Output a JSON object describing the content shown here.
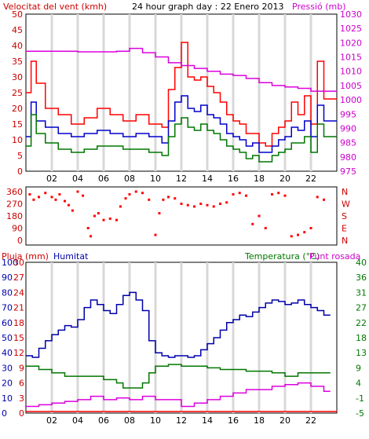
{
  "chart_data": [
    {
      "type": "line",
      "title": "24 hour graph day : 22 Enero 2013",
      "ylabel_left": "Velocitat del vent (kmh)",
      "ylabel_right": "Pressió (mb)",
      "x_ticks": [
        "02",
        "04",
        "06",
        "08",
        "10",
        "12",
        "14",
        "16",
        "18",
        "20",
        "22"
      ],
      "x_range": [
        0,
        24
      ],
      "y_left_range": [
        0,
        50
      ],
      "y_left_ticks": [
        0,
        5,
        10,
        15,
        20,
        25,
        30,
        35,
        40,
        45,
        50
      ],
      "y_right_range": [
        975,
        1030
      ],
      "y_right_ticks": [
        975,
        980,
        985,
        990,
        995,
        1000,
        1005,
        1010,
        1015,
        1020,
        1025,
        1030
      ],
      "colors": {
        "gust": "#ff0000",
        "speed": "#0000cc",
        "average": "#007700",
        "pressure": "#dd00dd",
        "grid": "#d8d8d8"
      },
      "pressure": {
        "x": [
          0,
          2,
          4,
          6,
          7,
          8,
          9,
          10,
          11,
          12,
          13,
          14,
          15,
          16,
          17,
          18,
          19,
          20,
          21,
          22,
          23
        ],
        "y": [
          1017,
          1017,
          1016.8,
          1016.8,
          1017,
          1018,
          1016.5,
          1015,
          1013,
          1012,
          1011,
          1010,
          1009,
          1008.5,
          1007.5,
          1006,
          1005,
          1004.5,
          1004,
          1003,
          1003
        ]
      },
      "gust_max": {
        "x": [
          0,
          0.4,
          0.8,
          1.5,
          2.5,
          3.5,
          4.5,
          5.5,
          6.5,
          7.5,
          8.5,
          9.5,
          10.5,
          11,
          11.5,
          12,
          12.5,
          13,
          13.5,
          14,
          14.5,
          15,
          15.5,
          16,
          16.5,
          17,
          17.5,
          18,
          18.5,
          19,
          19.5,
          20,
          20.5,
          21,
          21.5,
          22,
          22.5,
          23
        ],
        "y": [
          25,
          35,
          28,
          20,
          18,
          15,
          17,
          20,
          18,
          16,
          18,
          15,
          14,
          26,
          33,
          41,
          30,
          29,
          30,
          27,
          25,
          22,
          18,
          16,
          15,
          12,
          12,
          9,
          8,
          12,
          14,
          16,
          22,
          18,
          24,
          15,
          35,
          23
        ]
      },
      "speed": {
        "x": [
          0,
          0.4,
          0.8,
          1.5,
          2.5,
          3.5,
          4.5,
          5.5,
          6.5,
          7.5,
          8.5,
          9.5,
          10.5,
          11,
          11.5,
          12,
          12.5,
          13,
          13.5,
          14,
          14.5,
          15,
          15.5,
          16,
          16.5,
          17,
          17.5,
          18,
          18.5,
          19,
          19.5,
          20,
          20.5,
          21,
          21.5,
          22,
          22.5,
          23
        ],
        "y": [
          11,
          22,
          16,
          14,
          12,
          11,
          12,
          13,
          12,
          11,
          12,
          11,
          9,
          16,
          22,
          24,
          20,
          19,
          21,
          18,
          17,
          15,
          12,
          11,
          10,
          8,
          9,
          6,
          6,
          8,
          10,
          11,
          14,
          13,
          16,
          11,
          21,
          16
        ]
      },
      "average": {
        "x": [
          0,
          0.4,
          0.8,
          1.5,
          2.5,
          3.5,
          4.5,
          5.5,
          6.5,
          7.5,
          8.5,
          9.5,
          10.5,
          11,
          11.5,
          12,
          12.5,
          13,
          13.5,
          14,
          14.5,
          15,
          15.5,
          16,
          16.5,
          17,
          17.5,
          18,
          18.5,
          19,
          19.5,
          20,
          20.5,
          21,
          21.5,
          22,
          22.5,
          23
        ],
        "y": [
          8,
          18,
          12,
          9,
          7,
          6,
          7,
          8,
          8,
          7,
          7,
          6,
          5,
          11,
          15,
          17,
          14,
          13,
          15,
          13,
          12,
          10,
          8,
          7,
          6,
          4,
          5,
          3,
          3,
          5,
          6,
          7,
          9,
          9,
          11,
          6,
          15,
          11
        ]
      }
    },
    {
      "type": "scatter",
      "title": "",
      "y_left_ticks": [
        "360",
        "270",
        "180",
        "90",
        "0"
      ],
      "y_right_ticks": [
        "N",
        "W",
        "S",
        "E",
        "N"
      ],
      "y_range": [
        0,
        360
      ],
      "x_range": [
        0,
        24
      ],
      "colors": {
        "points": "#ff0000"
      },
      "direction": {
        "x": [
          0.3,
          0.6,
          1,
          1.5,
          2,
          2.3,
          2.6,
          3,
          3.3,
          3.6,
          4,
          4.4,
          4.8,
          5,
          5.3,
          5.6,
          6,
          6.5,
          7,
          7.3,
          7.7,
          8,
          8.5,
          9,
          9.5,
          10,
          10.3,
          10.6,
          11,
          11.5,
          12,
          12.5,
          13,
          13.5,
          14,
          14.5,
          15,
          15.5,
          16,
          16.5,
          17,
          17.5,
          18,
          18.5,
          19,
          19.5,
          20,
          20.5,
          21,
          21.5,
          22,
          22.5,
          23
        ],
        "y": [
          340,
          300,
          320,
          350,
          320,
          300,
          340,
          290,
          260,
          220,
          360,
          330,
          90,
          30,
          180,
          200,
          150,
          160,
          150,
          250,
          310,
          340,
          360,
          350,
          300,
          40,
          200,
          300,
          320,
          310,
          270,
          260,
          250,
          270,
          260,
          250,
          270,
          280,
          340,
          350,
          330,
          120,
          180,
          90,
          340,
          350,
          330,
          30,
          40,
          60,
          90,
          320,
          300
        ]
      }
    },
    {
      "type": "line",
      "title": "",
      "ylabel_left_1": "Pluja (mm)",
      "ylabel_left_2": "Humitat",
      "ylabel_right_1": "Temperatura (°C)",
      "ylabel_right_2": "Punt rosada",
      "x_ticks": [
        "02",
        "04",
        "06",
        "08",
        "10",
        "12",
        "14",
        "16",
        "18",
        "20",
        "22"
      ],
      "x_range": [
        0,
        24
      ],
      "rain_ticks": [
        0,
        3,
        6,
        9,
        12,
        15,
        18,
        21,
        24,
        27,
        30
      ],
      "humidity_ticks": [
        0,
        10,
        20,
        30,
        40,
        50,
        60,
        70,
        80,
        90,
        100
      ],
      "temp_ticks": [
        -5,
        -1,
        4,
        9,
        13,
        18,
        22,
        27,
        31,
        36,
        40
      ],
      "temp_range": [
        -5,
        40
      ],
      "humidity_range": [
        0,
        100
      ],
      "colors": {
        "humidity": "#0000aa",
        "temperature": "#007700",
        "dewpoint": "#dd00dd",
        "rain": "#ff0000"
      },
      "humidity": {
        "x": [
          0,
          0.5,
          1,
          1.5,
          2,
          2.5,
          3,
          3.5,
          4,
          4.5,
          5,
          5.5,
          6,
          6.5,
          7,
          7.5,
          8,
          8.5,
          9,
          9.5,
          10,
          10.5,
          11,
          11.5,
          12,
          12.5,
          13,
          13.5,
          14,
          14.5,
          15,
          15.5,
          16,
          16.5,
          17,
          17.5,
          18,
          18.5,
          19,
          19.5,
          20,
          20.5,
          21,
          21.5,
          22,
          22.5,
          23
        ],
        "y": [
          38,
          37,
          43,
          48,
          52,
          55,
          58,
          57,
          62,
          70,
          75,
          72,
          68,
          66,
          72,
          78,
          80,
          75,
          68,
          48,
          40,
          38,
          37,
          38,
          38,
          37,
          38,
          42,
          46,
          50,
          55,
          60,
          62,
          65,
          64,
          67,
          70,
          73,
          75,
          74,
          72,
          73,
          75,
          72,
          70,
          68,
          65
        ]
      },
      "temperature": {
        "x": [
          0,
          0.5,
          1,
          2,
          3,
          4,
          5,
          6,
          7,
          7.5,
          8,
          8.5,
          9,
          9.5,
          10,
          11,
          12,
          13,
          14,
          15,
          16,
          17,
          18,
          19,
          20,
          21,
          22,
          23
        ],
        "y": [
          9,
          9,
          8,
          7,
          6,
          6,
          6,
          5,
          4,
          2.5,
          2.5,
          2.5,
          4,
          7,
          9,
          9.5,
          9,
          9,
          8.5,
          8,
          8,
          7.5,
          7.5,
          7,
          6,
          7,
          7,
          7
        ]
      },
      "dewpoint": {
        "x": [
          0,
          1,
          2,
          3,
          4,
          5,
          6,
          7,
          8,
          9,
          10,
          11,
          12,
          13,
          14,
          15,
          16,
          17,
          18,
          19,
          20,
          21,
          22,
          23
        ],
        "y": [
          -3,
          -2.5,
          -2,
          -1.5,
          -1,
          0,
          -1,
          -0.5,
          -1,
          0,
          -1,
          -1,
          -3,
          -2,
          -1,
          0,
          1,
          2,
          2,
          3,
          3.5,
          4,
          3,
          1.5
        ]
      },
      "rain": {
        "x": [
          0,
          23
        ],
        "y": [
          0,
          0
        ]
      }
    }
  ]
}
